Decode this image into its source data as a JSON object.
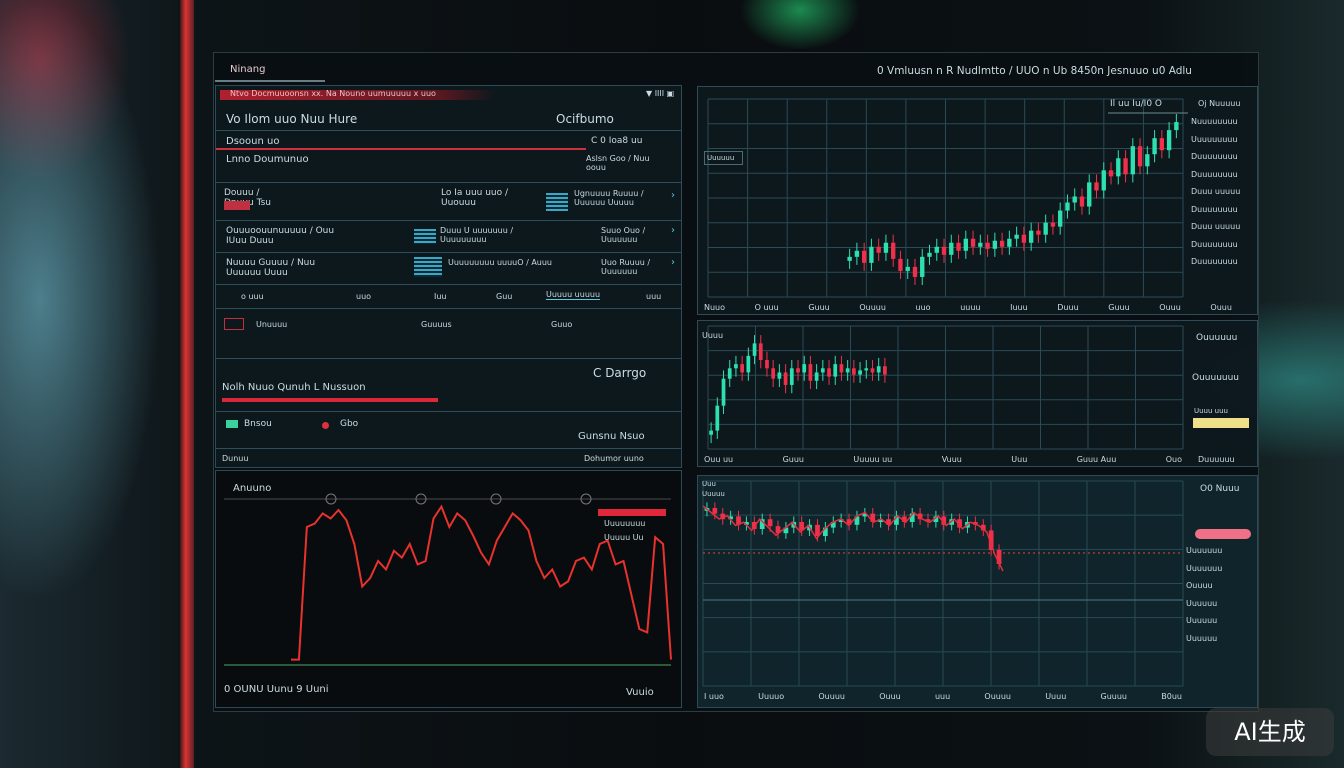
{
  "header": {
    "title": "Ninang",
    "status": "0 Vmluusn n R Nudlmtto / UUO n Ub 8450n Jesnuuo u0 Adlu"
  },
  "left_panel": {
    "alert": "Ntvo Docmuuoonsn xx. Na Nouno uumuuuuu x uuo",
    "alert_icons": "▼ IIII ▣",
    "title": "Vo Ilom uuo Nuu Hure",
    "title_right": "Ocifbumo",
    "rows": [
      {
        "a": "Dsooun uo",
        "b": "",
        "c": "C 0 Ioa8 uu"
      },
      {
        "a": "Lnno Doumunuo",
        "b": "",
        "c": "Aslsn Goo / Nuu oouu"
      },
      {
        "a": "Douuu / Dnuuu  Tsu",
        "b": "Lo Ia uuu uuo / Uuouuu",
        "c": "Ugnuuuu Ruuuu / Uuuuuu Uuuuu"
      },
      {
        "a": "Ouuuoouunuuuuu / Ouu IUuu Duuu",
        "b": "Duuu U  uuuuuuu / Uuuuuuuuu",
        "c": "Suuo Ouo / Uuuuuuu"
      },
      {
        "a": "Nuuuu Guuuu / Nuu Uuuuuu Uuuu",
        "b": "Uuuuuuuuu uuuuO / Auuu",
        "c": "Uuo Ruuuu / Uuuuuuu"
      }
    ],
    "axis": [
      "o uuu",
      "uuo",
      "Iuu",
      "Guu",
      "Uuuuu uuuuu",
      "uuu"
    ],
    "axis2": [
      "Unuuuu",
      "Guuuus",
      "Guuo"
    ],
    "section": "Nolh Nuuo Qunuh L Nussuon",
    "section_right": "C Darrgo",
    "item1": "Bnsou",
    "item2": "Gbo",
    "item3": "Gunsnu Nsuo",
    "footer_left": "Dunuu",
    "footer_right": "Dohumor uuno"
  },
  "line_chart": {
    "label": "Anuuno",
    "legend1": "Uuuuuuuu",
    "legend2": "Uuuuu Uu",
    "bottom_left": "0 OUNU  Uunu 9 Uuni",
    "bottom_right": "Vuuio",
    "color": "#e8322c",
    "values": [
      2,
      2,
      80,
      82,
      88,
      85,
      90,
      84,
      70,
      45,
      50,
      60,
      55,
      66,
      62,
      70,
      58,
      60,
      85,
      92,
      80,
      88,
      84,
      75,
      65,
      58,
      72,
      80,
      88,
      84,
      78,
      60,
      50,
      55,
      45,
      48,
      60,
      62,
      55,
      70,
      72,
      58,
      60,
      40,
      20,
      18,
      74,
      70,
      2
    ]
  },
  "top_chart": {
    "badge": "Uuuuuu",
    "header": "Il uu Iu/I0 O",
    "header2": "Oj Nuuuuu",
    "legend": [
      "Nuuuuuuuu",
      "Uuuuuuuuu",
      "Duuuuuuuu",
      "Duuuuuuuu",
      "Duuu uuuuu",
      "Duuuuuuuu",
      "Duuu uuuuu",
      "Duuuuuuuu",
      "Duuuuuuuu"
    ],
    "xticks": [
      "Nuuo",
      "O uuu",
      "Guuu",
      "Ouuuu",
      "uuo",
      "uuuu",
      "Iuuu",
      "Duuu",
      "Guuu",
      "Ouuu",
      "Ouuu"
    ],
    "up": "#2ee0b0",
    "down": "#f0304a",
    "closes": [
      55,
      58,
      52,
      60,
      57,
      62,
      54,
      48,
      50,
      45,
      55,
      57,
      60,
      56,
      62,
      58,
      64,
      60,
      62,
      59,
      63,
      60,
      64,
      66,
      62,
      68,
      66,
      72,
      70,
      78,
      82,
      85,
      80,
      92,
      88,
      98,
      95,
      104,
      96,
      110,
      100,
      106,
      114,
      108,
      118,
      122
    ]
  },
  "mid_chart": {
    "label": "Uuuu",
    "xticks": [
      "Ouu uu",
      "Guuu",
      "Uuuuu uu",
      "Vuuu",
      "Uuu",
      "Guuu Auu",
      "Ouo"
    ],
    "legend": [
      "Ouuuuuu",
      "Ouuuuuuu",
      "Uuuu uuu"
    ],
    "legend_last": "Duuuuuu",
    "closes": [
      30,
      42,
      55,
      60,
      62,
      58,
      66,
      72,
      64,
      60,
      55,
      58,
      52,
      60,
      58,
      62,
      54,
      58,
      60,
      56,
      62,
      58,
      60,
      57,
      59,
      60,
      58,
      61,
      57
    ]
  },
  "bottom_chart": {
    "label1": "Uuu",
    "label2": "Uuuuu",
    "button": "O0 Nuuu",
    "xticks": [
      "I uuo",
      "Uuuuo",
      "Ouuuu",
      "Ouuu",
      "uuu",
      "Ouuuu",
      "Uuuu",
      "Guuuu",
      "B0uu"
    ],
    "legend": [
      "Uuuuuuu",
      "Uuuuuuu",
      "Ouuuu",
      "Uuuuuu",
      "Uuuuuu",
      "Uuuuuu"
    ],
    "closes": [
      70,
      66,
      62,
      64,
      58,
      60,
      55,
      62,
      57,
      52,
      56,
      60,
      54,
      58,
      50,
      56,
      60,
      62,
      58,
      64,
      66,
      60,
      62,
      58,
      64,
      60,
      66,
      62,
      60,
      64,
      58,
      62,
      56,
      60,
      58,
      54,
      40,
      30
    ]
  },
  "watermark": "AI生成"
}
